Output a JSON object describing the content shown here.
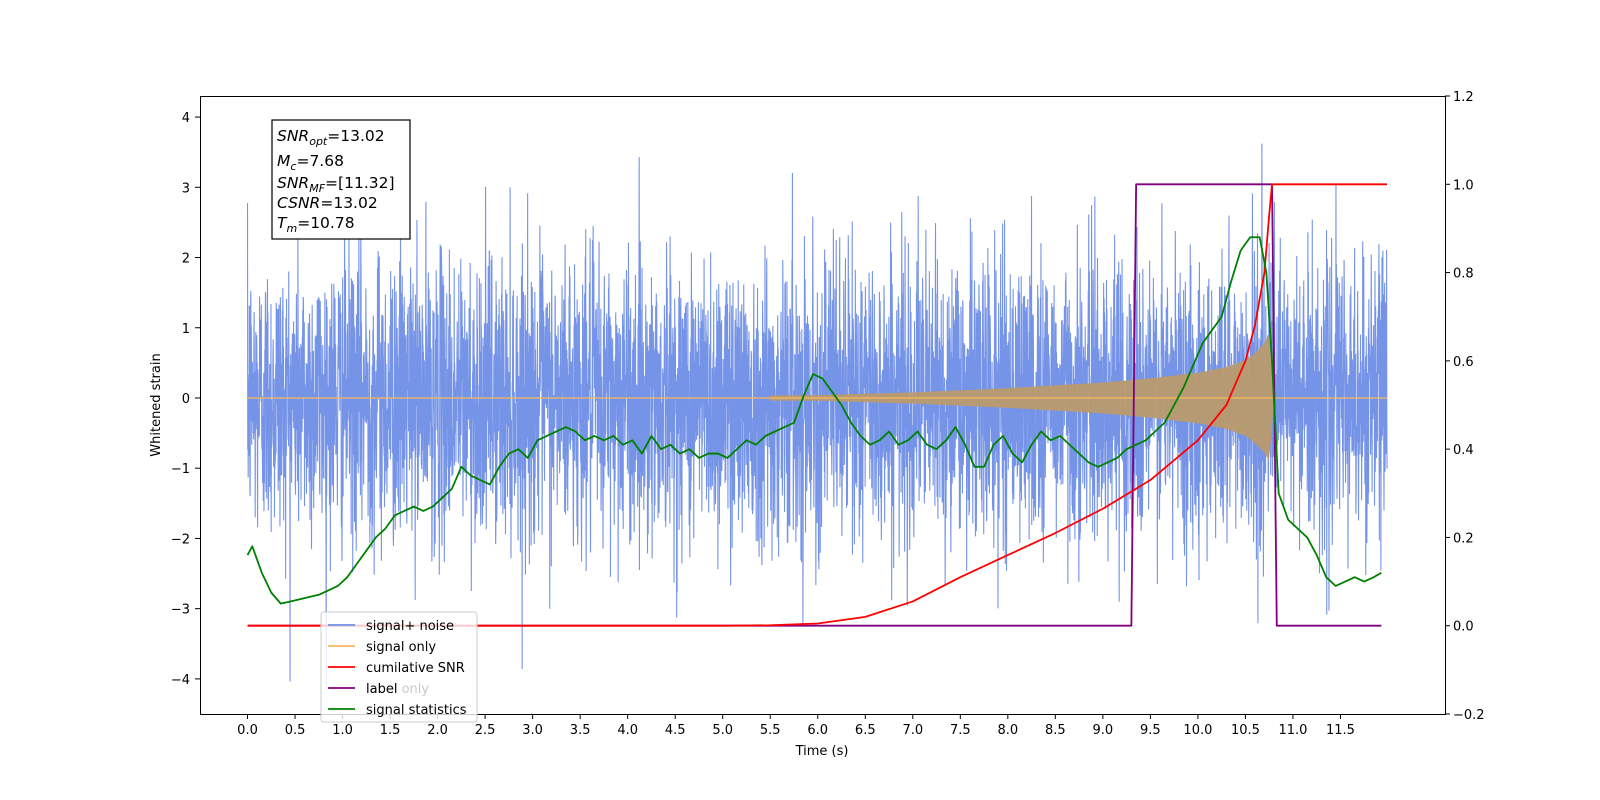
{
  "chart_data": {
    "type": "line",
    "xlabel": "Time (s)",
    "ylabel": "Whitened strain",
    "xlim": [
      -0.5,
      12.6
    ],
    "ylim": [
      -4.5,
      4.3
    ],
    "y2lim": [
      -0.2,
      1.2
    ],
    "x_ticks": [
      0.0,
      0.5,
      1.0,
      1.5,
      2.0,
      2.5,
      3.0,
      3.5,
      4.0,
      4.5,
      5.0,
      5.5,
      6.0,
      6.5,
      7.0,
      7.5,
      8.0,
      8.5,
      9.0,
      9.5,
      10.0,
      10.5,
      11.0,
      11.5
    ],
    "x_tick_labels": [
      "0.0",
      "0.5",
      "1.0",
      "1.5",
      "2.0",
      "2.5",
      "3.0",
      "3.5",
      "4.0",
      "4.5",
      "5.0",
      "5.5",
      "6.0",
      "6.5",
      "7.0",
      "7.5",
      "8.0",
      "8.5",
      "9.0",
      "9.5",
      "10.0",
      "10.5",
      "11.0",
      "11.5"
    ],
    "y_ticks": [
      -4,
      -3,
      -2,
      -1,
      0,
      1,
      2,
      3,
      4
    ],
    "y_tick_labels": [
      "−4",
      "−3",
      "−2",
      "−1",
      "0",
      "1",
      "2",
      "3",
      "4"
    ],
    "y2_ticks": [
      -0.2,
      0.0,
      0.2,
      0.4,
      0.6,
      0.8,
      1.0,
      1.2
    ],
    "y2_tick_labels": [
      "−0.2",
      "0.0",
      "0.2",
      "0.4",
      "0.6",
      "0.8",
      "1.0",
      "1.2"
    ],
    "annotation": {
      "snr_opt": "13.02",
      "mc": "7.68",
      "snr_mf": "[11.32]",
      "csnr": "13.02",
      "tm": "10.78"
    },
    "series": [
      {
        "name": "signal+ noise",
        "color": "#6f8ee6",
        "axis": "left",
        "description_values": "whitened strain noise, std ≈ 1, x from 0.0 to 11.99",
        "x_range": [
          0.0,
          11.99
        ]
      },
      {
        "name": "signal only",
        "color": "#f5b95d",
        "axis": "left",
        "x_range": [
          0.0,
          11.99
        ],
        "envelope": {
          "x": [
            0,
            6.0,
            7.0,
            8.0,
            9.0,
            9.5,
            10.0,
            10.3,
            10.5,
            10.6,
            10.7,
            10.75,
            10.78,
            10.8
          ],
          "amp": [
            0.0,
            0.04,
            0.08,
            0.14,
            0.22,
            0.28,
            0.36,
            0.44,
            0.54,
            0.64,
            0.78,
            0.9,
            0.4,
            0.0
          ]
        }
      },
      {
        "name": "cumilative SNR",
        "color": "#ff0000",
        "axis": "right",
        "x": [
          0.0,
          5.0,
          5.5,
          6.0,
          6.5,
          7.0,
          7.5,
          8.0,
          8.5,
          9.0,
          9.5,
          10.0,
          10.3,
          10.5,
          10.6,
          10.7,
          10.75,
          10.78,
          11.99
        ],
        "y": [
          0.0,
          0.0,
          0.001,
          0.005,
          0.02,
          0.055,
          0.11,
          0.16,
          0.21,
          0.265,
          0.33,
          0.42,
          0.5,
          0.6,
          0.68,
          0.8,
          0.93,
          1.0,
          1.0
        ]
      },
      {
        "name": "label",
        "color": "#800080",
        "axis": "right",
        "x": [
          0.0,
          9.3,
          9.35,
          10.78,
          10.83,
          11.93
        ],
        "y": [
          0.0,
          0.0,
          1.0,
          1.0,
          0.0,
          0.0
        ]
      },
      {
        "name": "signal statistics",
        "color": "#008000",
        "axis": "right",
        "x": [
          0.0,
          0.05,
          0.15,
          0.25,
          0.35,
          0.45,
          0.55,
          0.65,
          0.75,
          0.85,
          0.95,
          1.05,
          1.15,
          1.25,
          1.35,
          1.45,
          1.55,
          1.65,
          1.75,
          1.85,
          1.95,
          2.05,
          2.15,
          2.25,
          2.35,
          2.45,
          2.55,
          2.65,
          2.75,
          2.85,
          2.95,
          3.05,
          3.15,
          3.25,
          3.35,
          3.45,
          3.55,
          3.65,
          3.75,
          3.85,
          3.95,
          4.05,
          4.15,
          4.25,
          4.35,
          4.45,
          4.55,
          4.65,
          4.75,
          4.85,
          4.95,
          5.05,
          5.15,
          5.25,
          5.35,
          5.45,
          5.55,
          5.65,
          5.75,
          5.85,
          5.95,
          6.05,
          6.15,
          6.25,
          6.35,
          6.45,
          6.55,
          6.65,
          6.75,
          6.85,
          6.95,
          7.05,
          7.15,
          7.25,
          7.35,
          7.45,
          7.55,
          7.65,
          7.75,
          7.85,
          7.95,
          8.05,
          8.15,
          8.25,
          8.35,
          8.45,
          8.55,
          8.65,
          8.75,
          8.85,
          8.95,
          9.05,
          9.15,
          9.25,
          9.35,
          9.45,
          9.55,
          9.65,
          9.75,
          9.85,
          9.95,
          10.05,
          10.15,
          10.25,
          10.35,
          10.45,
          10.55,
          10.65,
          10.72,
          10.78,
          10.85,
          10.95,
          11.05,
          11.15,
          11.25,
          11.35,
          11.45,
          11.55,
          11.65,
          11.75,
          11.85,
          11.93
        ],
        "y": [
          0.16,
          0.18,
          0.12,
          0.075,
          0.05,
          0.055,
          0.06,
          0.065,
          0.07,
          0.08,
          0.09,
          0.11,
          0.14,
          0.17,
          0.2,
          0.22,
          0.25,
          0.26,
          0.27,
          0.26,
          0.27,
          0.29,
          0.31,
          0.36,
          0.34,
          0.33,
          0.32,
          0.36,
          0.39,
          0.4,
          0.38,
          0.42,
          0.43,
          0.44,
          0.45,
          0.44,
          0.42,
          0.43,
          0.42,
          0.43,
          0.41,
          0.42,
          0.39,
          0.43,
          0.4,
          0.41,
          0.39,
          0.4,
          0.38,
          0.39,
          0.39,
          0.38,
          0.4,
          0.42,
          0.41,
          0.43,
          0.44,
          0.45,
          0.46,
          0.52,
          0.57,
          0.56,
          0.53,
          0.5,
          0.46,
          0.43,
          0.41,
          0.42,
          0.44,
          0.41,
          0.42,
          0.44,
          0.41,
          0.4,
          0.42,
          0.45,
          0.41,
          0.36,
          0.36,
          0.41,
          0.43,
          0.39,
          0.37,
          0.41,
          0.44,
          0.42,
          0.43,
          0.41,
          0.39,
          0.37,
          0.36,
          0.37,
          0.38,
          0.4,
          0.41,
          0.42,
          0.44,
          0.46,
          0.5,
          0.54,
          0.59,
          0.64,
          0.67,
          0.7,
          0.78,
          0.85,
          0.88,
          0.88,
          0.8,
          0.6,
          0.3,
          0.24,
          0.22,
          0.2,
          0.16,
          0.11,
          0.09,
          0.1,
          0.11,
          0.1,
          0.11,
          0.12
        ]
      }
    ],
    "legend": {
      "placement": "lower-left",
      "entries": [
        "signal+ noise",
        "signal only",
        "cumilative SNR",
        "label",
        "signal statistics"
      ],
      "ghost_text": [
        "label only"
      ]
    }
  }
}
